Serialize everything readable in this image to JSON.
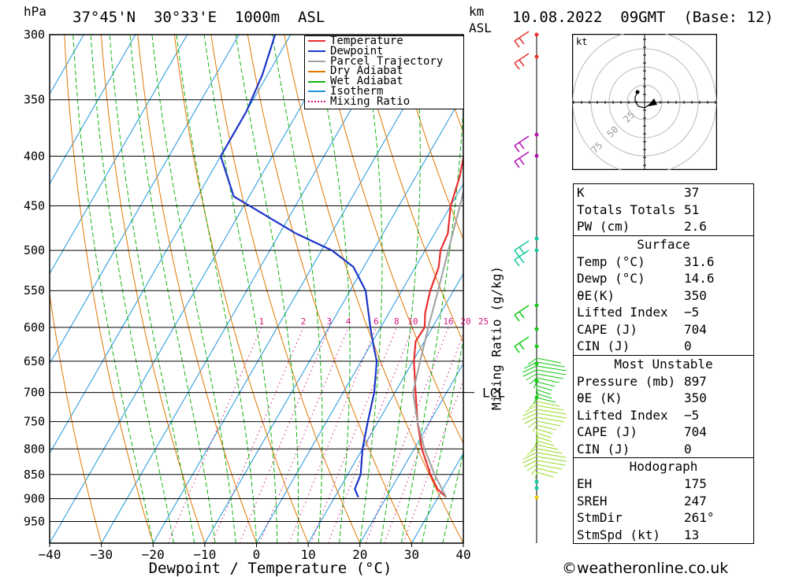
{
  "header": {
    "pressure_unit": "hPa",
    "location": "37°45'N  30°33'E  1000m  ASL",
    "km_label": "km",
    "asl_label": "ASL",
    "datetime": "10.08.2022  09GMT  (Base: 12)"
  },
  "legend": [
    {
      "label": "Temperature",
      "color": "#e8302f",
      "style": "solid"
    },
    {
      "label": "Dewpoint",
      "color": "#1c35c8",
      "style": "solid"
    },
    {
      "label": "Parcel Trajectory",
      "color": "#a0a0a0",
      "style": "solid"
    },
    {
      "label": "Dry Adiabat",
      "color": "#e07800",
      "style": "solid"
    },
    {
      "label": "Wet Adiabat",
      "color": "#14b414",
      "style": "solid"
    },
    {
      "label": "Isotherm",
      "color": "#1e96dc",
      "style": "solid"
    },
    {
      "label": "Mixing Ratio",
      "color": "#d2147d",
      "style": "dotted"
    }
  ],
  "chart_data": {
    "type": "line",
    "subtype": "skew-t",
    "xlabel": "Dewpoint / Temperature (°C)",
    "ylabel": "hPa",
    "right_label": "Mixing Ratio (g/kg)",
    "xlim": [
      -40,
      40
    ],
    "ylim": [
      1000,
      300
    ],
    "x_ticks": [
      "−40",
      "−30",
      "−20",
      "−10",
      "0",
      "10",
      "20",
      "30",
      "40"
    ],
    "pressure_ticks": [
      300,
      350,
      400,
      450,
      500,
      550,
      600,
      650,
      700,
      750,
      800,
      850,
      900,
      950
    ],
    "mixing_ratio_labels": [
      "1",
      "2",
      "3",
      "4",
      "6",
      "8",
      "10",
      "16",
      "20",
      "25"
    ],
    "lcl_label": "LCL",
    "lcl_pressure": 700,
    "series": [
      {
        "name": "Temperature",
        "color": "#e8302f",
        "points": [
          [
            897,
            31.6
          ],
          [
            880,
            29.0
          ],
          [
            850,
            26.0
          ],
          [
            800,
            21.5
          ],
          [
            750,
            17.6
          ],
          [
            700,
            14.0
          ],
          [
            650,
            10.2
          ],
          [
            620,
            8.3
          ],
          [
            600,
            8.5
          ],
          [
            580,
            7.0
          ],
          [
            550,
            5.5
          ],
          [
            520,
            4.5
          ],
          [
            500,
            3.0
          ],
          [
            480,
            2.5
          ],
          [
            450,
            0.0
          ],
          [
            420,
            -1.5
          ],
          [
            400,
            -3.0
          ],
          [
            370,
            -4.8
          ],
          [
            360,
            -5.5
          ]
        ]
      },
      {
        "name": "Dewpoint",
        "color": "#1c35c8",
        "points": [
          [
            897,
            14.6
          ],
          [
            880,
            13.0
          ],
          [
            850,
            12.5
          ],
          [
            800,
            10.0
          ],
          [
            750,
            8.0
          ],
          [
            700,
            6.0
          ],
          [
            650,
            3.0
          ],
          [
            630,
            1.0
          ],
          [
            600,
            -2.0
          ],
          [
            550,
            -7.0
          ],
          [
            520,
            -12.0
          ],
          [
            500,
            -18.0
          ],
          [
            480,
            -27.0
          ],
          [
            440,
            -43.0
          ],
          [
            400,
            -50.0
          ],
          [
            360,
            -50.0
          ],
          [
            330,
            -51.0
          ],
          [
            300,
            -53.0
          ]
        ]
      },
      {
        "name": "Parcel Trajectory",
        "color": "#a0a0a0",
        "points": [
          [
            897,
            31.6
          ],
          [
            850,
            26.8
          ],
          [
            800,
            22.0
          ],
          [
            750,
            17.6
          ],
          [
            700,
            13.5
          ],
          [
            650,
            11.4
          ],
          [
            600,
            9.2
          ],
          [
            550,
            7.0
          ],
          [
            500,
            4.5
          ],
          [
            450,
            1.8
          ],
          [
            400,
            -1.5
          ],
          [
            360,
            -5.5
          ]
        ]
      }
    ]
  },
  "wind_barbs_label": "wind profile",
  "hodograph": {
    "unit": "kt",
    "rings": [
      "25",
      "50",
      "75"
    ]
  },
  "indices": {
    "k_label": "K",
    "k_value": "37",
    "tt_label": "Totals Totals",
    "tt_value": "51",
    "pw_label": "PW (cm)",
    "pw_value": "2.6"
  },
  "surface": {
    "title": "Surface",
    "rows": [
      {
        "label": "Temp (°C)",
        "value": "31.6"
      },
      {
        "label": "Dewp (°C)",
        "value": "14.6"
      },
      {
        "label": "θE(K)",
        "value": "350"
      },
      {
        "label": "Lifted Index",
        "value": "−5"
      },
      {
        "label": "CAPE (J)",
        "value": "704"
      },
      {
        "label": "CIN (J)",
        "value": "0"
      }
    ]
  },
  "most_unstable": {
    "title": "Most Unstable",
    "rows": [
      {
        "label": "Pressure (mb)",
        "value": "897"
      },
      {
        "label": "θE (K)",
        "value": "350"
      },
      {
        "label": "Lifted Index",
        "value": "−5"
      },
      {
        "label": "CAPE (J)",
        "value": "704"
      },
      {
        "label": "CIN (J)",
        "value": "0"
      }
    ]
  },
  "hodograph_table": {
    "title": "Hodograph",
    "rows": [
      {
        "label": "EH",
        "value": "175"
      },
      {
        "label": "SREH",
        "value": "247"
      },
      {
        "label": "StmDir",
        "value": "261°"
      },
      {
        "label": "StmSpd (kt)",
        "value": "13"
      }
    ]
  },
  "footer": "©weatheronline.co.uk"
}
